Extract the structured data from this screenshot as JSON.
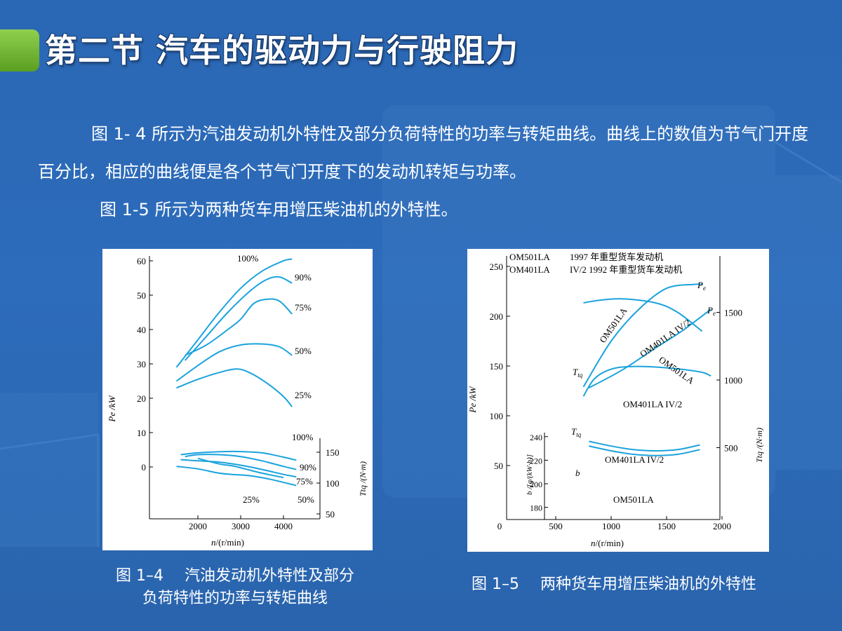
{
  "slide": {
    "title": "第二节  汽车的驱动力与行驶阻力",
    "paragraph1": "图 1- 4  所示为汽油发动机外特性及部分负荷特性的功率与转矩曲线。曲线上的数值为节气门开度百分比，相应的曲线便是各个节气门开度下的发动机转矩与功率。",
    "paragraph2": "图 1-5  所示为两种货车用增压柴油机的外特性。",
    "accent_color": "#6db536",
    "background_color": "#2b68b5"
  },
  "captions": {
    "fig4_number": "图 1–4",
    "fig4_text_line1": "汽油发动机外特性及部分",
    "fig4_text_line2": "负荷特性的功率与转矩曲线",
    "fig5_number": "图 1–5",
    "fig5_text": "两种货车用增压柴油机的外特性"
  },
  "chart_data": [
    {
      "type": "line",
      "curve_color": "#1aa3dd",
      "x_ticks": [
        "2000",
        "3000",
        "4000"
      ],
      "xlabel_italic": "n",
      "xlabel_rest": "/(r/min)",
      "y_left_ticks": [
        "60",
        "50",
        "40",
        "30",
        "20",
        "10",
        "0"
      ],
      "ylabel_left": "Pe /kW",
      "y_right_ticks": [
        "150",
        "100",
        "50"
      ],
      "ylabel_right": "Ttq /(N·m)",
      "ylim_power": [
        0,
        60
      ],
      "ylim_torque": [
        50,
        150
      ],
      "power_series": [
        {
          "name": "100%",
          "points": [
            [
              1500,
              29
            ],
            [
              2000,
              37
            ],
            [
              2500,
              45
            ],
            [
              3000,
              52
            ],
            [
              3500,
              57
            ],
            [
              4000,
              60
            ],
            [
              4200,
              60.5
            ]
          ]
        },
        {
          "name": "90%",
          "points": [
            [
              1700,
              31
            ],
            [
              2200,
              38
            ],
            [
              2700,
              45
            ],
            [
              3200,
              51
            ],
            [
              3600,
              54.5
            ],
            [
              3900,
              55.3
            ],
            [
              4200,
              53.5
            ]
          ]
        },
        {
          "name": "75%",
          "points": [
            [
              1700,
              32.5
            ],
            [
              2200,
              35.5
            ],
            [
              2700,
              40
            ],
            [
              3000,
              43
            ],
            [
              3300,
              47.5
            ],
            [
              3600,
              48.8
            ],
            [
              3900,
              48.3
            ],
            [
              4200,
              44.5
            ]
          ]
        },
        {
          "name": "50%",
          "points": [
            [
              1500,
              25
            ],
            [
              2000,
              29.5
            ],
            [
              2500,
              33.5
            ],
            [
              3000,
              35.5
            ],
            [
              3500,
              35.8
            ],
            [
              3900,
              35
            ],
            [
              4200,
              32.5
            ]
          ]
        },
        {
          "name": "25%",
          "points": [
            [
              1500,
              23
            ],
            [
              2000,
              25.5
            ],
            [
              2500,
              27.5
            ],
            [
              2900,
              28.5
            ],
            [
              3200,
              27.5
            ],
            [
              3600,
              24.5
            ],
            [
              4000,
              20.5
            ],
            [
              4200,
              17.5
            ]
          ]
        }
      ],
      "torque_series": [
        {
          "name": "100%",
          "points": [
            [
              1600,
              146
            ],
            [
              2000,
              149
            ],
            [
              2600,
              151
            ],
            [
              3000,
              151
            ],
            [
              3500,
              149
            ],
            [
              4000,
              142
            ],
            [
              4300,
              137
            ]
          ]
        },
        {
          "name": "90%",
          "points": [
            [
              1700,
              143
            ],
            [
              2000,
              146
            ],
            [
              2500,
              146
            ],
            [
              3000,
              143
            ],
            [
              3500,
              136
            ],
            [
              4000,
              127
            ],
            [
              4300,
              122
            ]
          ]
        },
        {
          "name": "75%",
          "points": [
            [
              1600,
              138
            ],
            [
              2000,
              136
            ],
            [
              2500,
              134
            ],
            [
              3000,
              129
            ],
            [
              3500,
              122
            ],
            [
              4000,
              114
            ],
            [
              4300,
              110
            ]
          ]
        },
        {
          "name": "50%",
          "points": [
            [
              1500,
              127
            ],
            [
              2000,
              123
            ],
            [
              2500,
              116
            ],
            [
              2800,
              114
            ],
            [
              3200,
              112
            ],
            [
              3700,
              106
            ],
            [
              4300,
              96
            ]
          ]
        },
        {
          "name": "",
          "points": [
            [
              2000,
              140
            ],
            [
              2500,
              131
            ],
            [
              2800,
              128
            ],
            [
              3100,
              123
            ],
            [
              3500,
              116
            ],
            [
              4000,
              109
            ]
          ]
        }
      ],
      "extra_labels": {
        "low_label": "25%"
      }
    },
    {
      "type": "line",
      "curve_color": "#1aa3dd",
      "legend_lines": [
        {
          "model": "OM501LA",
          "desc": "1997 年重型货车发动机"
        },
        {
          "model": "OM401LA",
          "desc": "IV/2   1992 年重型货车发动机"
        }
      ],
      "x_ticks": [
        "0",
        "500",
        "1000",
        "1500",
        "2000"
      ],
      "xlim": [
        0,
        2000
      ],
      "xlabel_italic": "n",
      "xlabel_rest": "/(r/min)",
      "y_left_ticks": [
        "250",
        "200",
        "150",
        "100",
        "50"
      ],
      "ylabel_left": "Pe /kW",
      "ylim_power": [
        0,
        250
      ],
      "y_right_ticks": [
        "1500",
        "1000",
        "500"
      ],
      "ylabel_right": "Ttq /(N·m)",
      "ylim_torque": [
        0,
        2000
      ],
      "y_inner_ticks": [
        "240",
        "220",
        "200",
        "180"
      ],
      "ylabel_inner": "b /[g/(kW·h)]",
      "ylim_bsfc": [
        175,
        245
      ],
      "series_labels": {
        "pe_tag": "P",
        "pe_sub": "e",
        "ttq_tag": "T",
        "ttq_sub": "tq",
        "b_tag": "b",
        "om501": "OM501LA",
        "om401": "OM401LA IV/2"
      },
      "series": [
        {
          "name": "Pe OM501LA",
          "points": [
            [
              750,
              129
            ],
            [
              1000,
              175
            ],
            [
              1250,
              207
            ],
            [
              1500,
              228
            ],
            [
              1750,
              232
            ],
            [
              1820,
              232
            ]
          ]
        },
        {
          "name": "Pe OM401LA IV/2",
          "points": [
            [
              800,
              128
            ],
            [
              1100,
              146
            ],
            [
              1400,
              168
            ],
            [
              1650,
              186
            ],
            [
              1900,
              207
            ]
          ]
        },
        {
          "name": "Ttq OM501LA",
          "points": [
            [
              750,
              1570
            ],
            [
              900,
              1590
            ],
            [
              1100,
              1600
            ],
            [
              1400,
              1570
            ],
            [
              1600,
              1500
            ],
            [
              1820,
              1360
            ]
          ]
        },
        {
          "name": "Ttq OM401LA IV/2",
          "points": [
            [
              750,
              880
            ],
            [
              850,
              1010
            ],
            [
              1000,
              1080
            ],
            [
              1200,
              1100
            ],
            [
              1500,
              1090
            ],
            [
              1800,
              1060
            ],
            [
              1900,
              1030
            ]
          ]
        },
        {
          "name": "b OM401LA IV/2",
          "points": [
            [
              800,
              236
            ],
            [
              1000,
              232
            ],
            [
              1200,
              229
            ],
            [
              1400,
              228
            ],
            [
              1600,
              229
            ],
            [
              1800,
              233
            ]
          ]
        },
        {
          "name": "b OM501LA",
          "points": [
            [
              800,
              232
            ],
            [
              1000,
              228
            ],
            [
              1200,
              225
            ],
            [
              1400,
              224
            ],
            [
              1600,
              225
            ],
            [
              1800,
              229
            ]
          ]
        }
      ]
    }
  ]
}
